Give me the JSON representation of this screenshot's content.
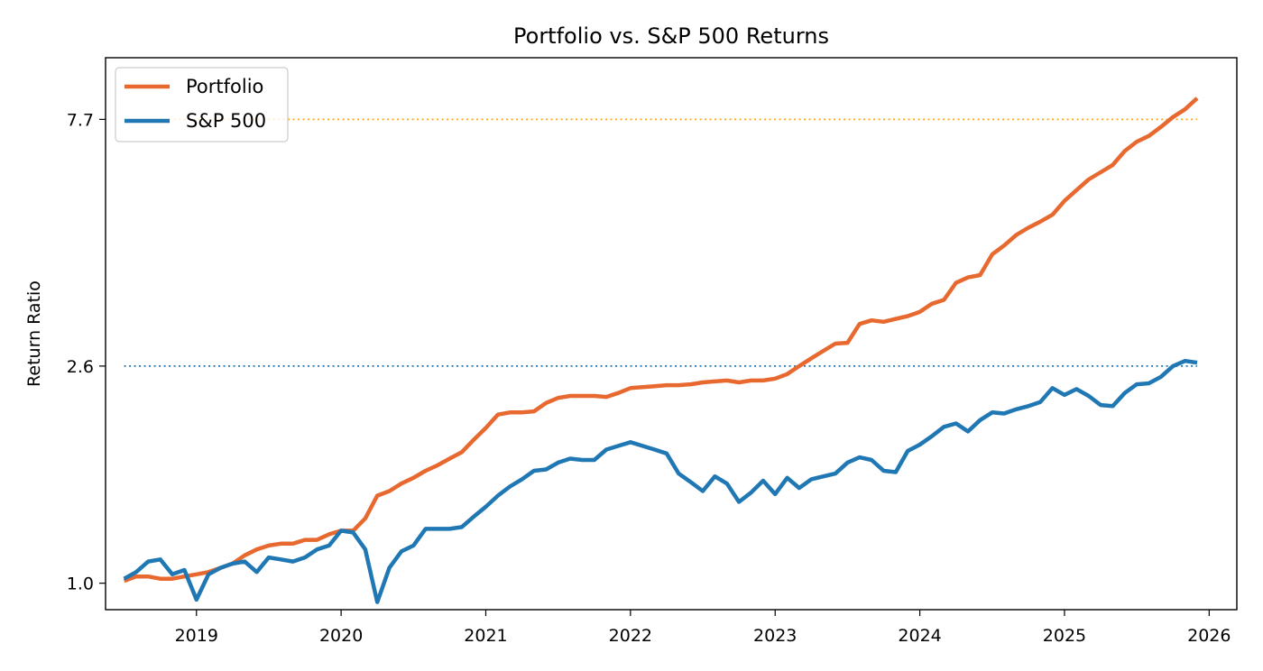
{
  "chart_data": {
    "type": "line",
    "title": "Portfolio vs. S&P 500 Returns",
    "xlabel": "",
    "ylabel": "Return Ratio",
    "y_scale": "log",
    "xlim": [
      "2018-05-15",
      "2026-03-10"
    ],
    "ylim": [
      0.89,
      10.1
    ],
    "xticks": [
      "2019",
      "2020",
      "2021",
      "2022",
      "2023",
      "2024",
      "2025",
      "2026"
    ],
    "yticks": [
      1.0,
      2.6,
      7.7
    ],
    "ytick_labels": [
      "1.0",
      "2.6",
      "7.7"
    ],
    "grid": false,
    "legend": {
      "location": "upper-left",
      "entries": [
        "Portfolio",
        "S&P 500"
      ]
    },
    "reference_lines": [
      {
        "series": "Portfolio",
        "value": 7.7,
        "style": "dotted",
        "color": "#ffa500"
      },
      {
        "series": "S&P 500",
        "value": 2.6,
        "style": "dotted",
        "color": "#1f77b4"
      }
    ],
    "colors": {
      "Portfolio": "#e8692f",
      "S&P 500": "#1f77b4"
    },
    "x": [
      "2018-07",
      "2018-08",
      "2018-09",
      "2018-10",
      "2018-11",
      "2018-12",
      "2019-01",
      "2019-02",
      "2019-03",
      "2019-04",
      "2019-05",
      "2019-06",
      "2019-07",
      "2019-08",
      "2019-09",
      "2019-10",
      "2019-11",
      "2019-12",
      "2020-01",
      "2020-02",
      "2020-03",
      "2020-04",
      "2020-05",
      "2020-06",
      "2020-07",
      "2020-08",
      "2020-09",
      "2020-10",
      "2020-11",
      "2020-12",
      "2021-01",
      "2021-02",
      "2021-03",
      "2021-04",
      "2021-05",
      "2021-06",
      "2021-07",
      "2021-08",
      "2021-09",
      "2021-10",
      "2021-11",
      "2021-12",
      "2022-01",
      "2022-02",
      "2022-03",
      "2022-04",
      "2022-05",
      "2022-06",
      "2022-07",
      "2022-08",
      "2022-09",
      "2022-10",
      "2022-11",
      "2022-12",
      "2023-01",
      "2023-02",
      "2023-03",
      "2023-04",
      "2023-05",
      "2023-06",
      "2023-07",
      "2023-08",
      "2023-09",
      "2023-10",
      "2023-11",
      "2023-12",
      "2024-01",
      "2024-02",
      "2024-03",
      "2024-04",
      "2024-05",
      "2024-06",
      "2024-07",
      "2024-08",
      "2024-09",
      "2024-10",
      "2024-11",
      "2024-12",
      "2025-01",
      "2025-02",
      "2025-03",
      "2025-04",
      "2025-05",
      "2025-06",
      "2025-07",
      "2025-08",
      "2025-09",
      "2025-10",
      "2025-11",
      "2025-12"
    ],
    "series": [
      {
        "name": "Portfolio",
        "values": [
          1.01,
          1.03,
          1.03,
          1.02,
          1.02,
          1.03,
          1.04,
          1.05,
          1.07,
          1.09,
          1.13,
          1.16,
          1.18,
          1.19,
          1.19,
          1.21,
          1.21,
          1.24,
          1.26,
          1.26,
          1.33,
          1.47,
          1.5,
          1.55,
          1.59,
          1.64,
          1.68,
          1.73,
          1.78,
          1.88,
          1.98,
          2.1,
          2.12,
          2.12,
          2.13,
          2.21,
          2.26,
          2.28,
          2.28,
          2.28,
          2.27,
          2.31,
          2.36,
          2.37,
          2.38,
          2.39,
          2.39,
          2.4,
          2.42,
          2.43,
          2.44,
          2.42,
          2.44,
          2.44,
          2.46,
          2.51,
          2.6,
          2.69,
          2.78,
          2.87,
          2.88,
          3.13,
          3.18,
          3.16,
          3.2,
          3.24,
          3.3,
          3.42,
          3.48,
          3.75,
          3.84,
          3.88,
          4.25,
          4.42,
          4.63,
          4.78,
          4.91,
          5.06,
          5.38,
          5.64,
          5.91,
          6.1,
          6.3,
          6.7,
          6.98,
          7.16,
          7.45,
          7.78,
          8.05,
          8.45
        ]
      },
      {
        "name": "S&P 500",
        "values": [
          1.02,
          1.05,
          1.1,
          1.11,
          1.04,
          1.06,
          0.93,
          1.04,
          1.07,
          1.09,
          1.1,
          1.05,
          1.12,
          1.11,
          1.1,
          1.12,
          1.16,
          1.18,
          1.26,
          1.25,
          1.16,
          0.92,
          1.07,
          1.15,
          1.18,
          1.27,
          1.27,
          1.27,
          1.28,
          1.34,
          1.4,
          1.47,
          1.53,
          1.58,
          1.64,
          1.65,
          1.7,
          1.73,
          1.72,
          1.72,
          1.8,
          1.83,
          1.86,
          1.83,
          1.8,
          1.77,
          1.62,
          1.56,
          1.5,
          1.6,
          1.55,
          1.43,
          1.49,
          1.57,
          1.48,
          1.59,
          1.52,
          1.58,
          1.6,
          1.62,
          1.7,
          1.74,
          1.72,
          1.64,
          1.63,
          1.79,
          1.84,
          1.91,
          1.99,
          2.02,
          1.95,
          2.05,
          2.12,
          2.11,
          2.15,
          2.18,
          2.22,
          2.36,
          2.29,
          2.35,
          2.28,
          2.19,
          2.18,
          2.31,
          2.4,
          2.41,
          2.48,
          2.6,
          2.66,
          2.64
        ]
      }
    ]
  }
}
